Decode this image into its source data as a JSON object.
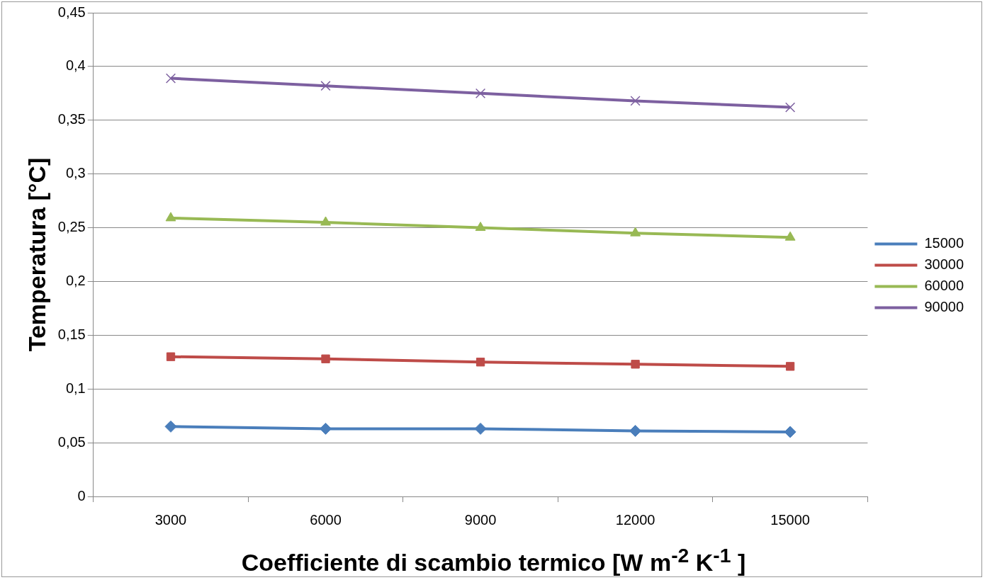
{
  "chart_data": {
    "type": "line",
    "xlabel": "Coefficiente di scambio termico [W m$^{-2}$ K$^{-1}$ ]",
    "ylabel": "Temperatura [°C]",
    "categories": [
      "3000",
      "6000",
      "9000",
      "12000",
      "15000"
    ],
    "series": [
      {
        "name": "15000",
        "color": "#4a7ebb",
        "marker": "diamond",
        "values": [
          0.065,
          0.063,
          0.063,
          0.061,
          0.06
        ]
      },
      {
        "name": "30000",
        "color": "#be4b48",
        "marker": "square",
        "values": [
          0.13,
          0.128,
          0.125,
          0.123,
          0.121
        ]
      },
      {
        "name": "60000",
        "color": "#98b954",
        "marker": "triangle",
        "values": [
          0.259,
          0.255,
          0.25,
          0.245,
          0.241
        ]
      },
      {
        "name": "90000",
        "color": "#7d60a0",
        "marker": "cross",
        "values": [
          0.389,
          0.382,
          0.375,
          0.368,
          0.362
        ]
      }
    ],
    "ylim": [
      0,
      0.45
    ],
    "yticks": [
      {
        "value": 0,
        "label": "0"
      },
      {
        "value": 0.05,
        "label": "0,05"
      },
      {
        "value": 0.1,
        "label": "0,1"
      },
      {
        "value": 0.15,
        "label": "0,15"
      },
      {
        "value": 0.2,
        "label": "0,2"
      },
      {
        "value": 0.25,
        "label": "0,25"
      },
      {
        "value": 0.3,
        "label": "0,3"
      },
      {
        "value": 0.35,
        "label": "0,35"
      },
      {
        "value": 0.4,
        "label": "0,4"
      },
      {
        "value": 0.45,
        "label": "0,45"
      }
    ],
    "grid": "y",
    "legend": "right",
    "line_style": "solid"
  }
}
